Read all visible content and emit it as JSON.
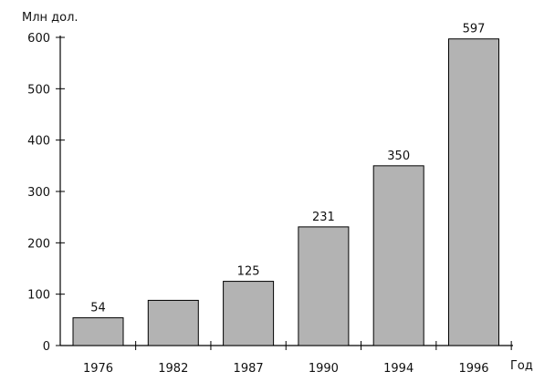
{
  "chart_data": {
    "type": "bar",
    "ylabel": "Млн дол.",
    "xlabel": "Год",
    "categories": [
      "1976",
      "1982",
      "1987",
      "1990",
      "1994",
      "1996"
    ],
    "values": [
      54,
      88,
      125,
      231,
      350,
      597
    ],
    "data_labels": [
      "54",
      null,
      "125",
      "231",
      "350",
      "597"
    ],
    "ylim": [
      0,
      600
    ],
    "yticks": [
      0,
      100,
      200,
      300,
      400,
      500,
      600
    ],
    "bar_color": "#b3b3b3",
    "bar_edge_color": "#000000",
    "grid": false,
    "legend": "none"
  }
}
